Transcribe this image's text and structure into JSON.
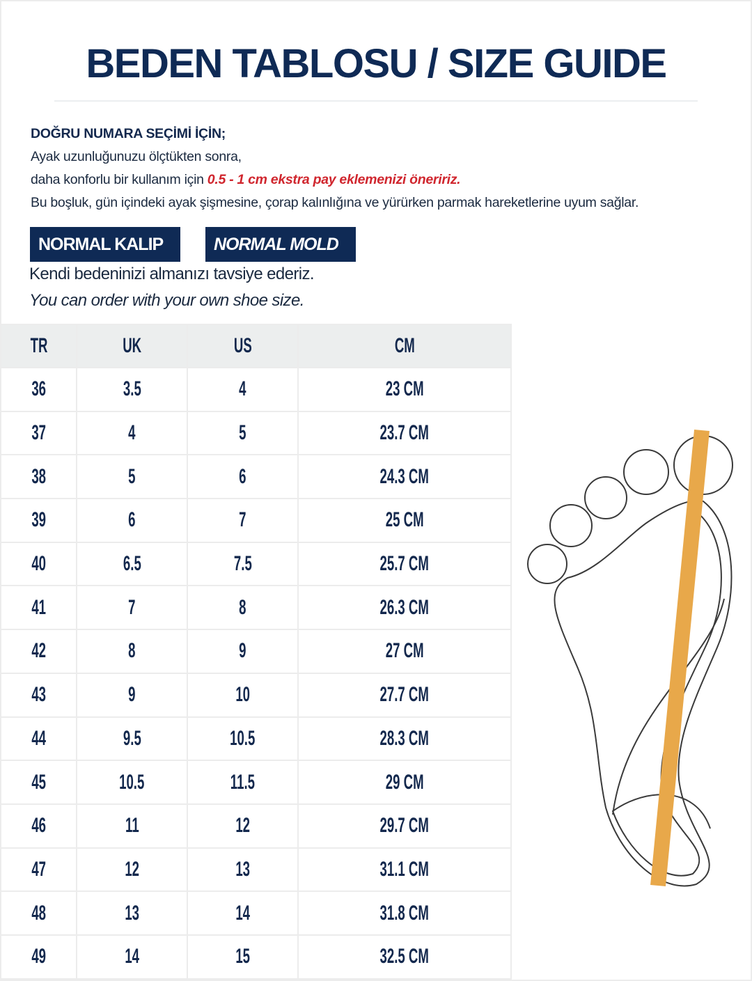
{
  "title": "BEDEN TABLOSU / SIZE GUIDE",
  "intro": {
    "heading": "DOĞRU NUMARA SEÇİMİ İÇİN;",
    "line1": "Ayak uzunluğunuzu ölçtükten sonra,",
    "line2_prefix": "daha konforlu bir kullanım için ",
    "line2_highlight": "0.5 - 1 cm ekstra pay eklemenizi öneririz.",
    "line3": "Bu boşluk, gün içindeki ayak şişmesine, çorap kalınlığına ve yürürken parmak hareketlerine uyum sağlar."
  },
  "badges": [
    "NORMAL KALIP",
    "NORMAL MOLD"
  ],
  "recommendation_tr": "Kendi bedeninizi almanızı tavsiye ederiz.",
  "recommendation_en": "You can order with your own shoe size.",
  "colors": {
    "navy": "#0f2a55",
    "highlight_red": "#d0262e",
    "ruler_orange": "#e8a84a",
    "header_bg": "#eceeee"
  },
  "table": {
    "headers": [
      "TR",
      "UK",
      "US",
      "CM"
    ],
    "rows": [
      [
        "36",
        "3.5",
        "4",
        "23 CM"
      ],
      [
        "37",
        "4",
        "5",
        "23.7 CM"
      ],
      [
        "38",
        "5",
        "6",
        "24.3 CM"
      ],
      [
        "39",
        "6",
        "7",
        "25 CM"
      ],
      [
        "40",
        "6.5",
        "7.5",
        "25.7 CM"
      ],
      [
        "41",
        "7",
        "8",
        "26.3 CM"
      ],
      [
        "42",
        "8",
        "9",
        "27 CM"
      ],
      [
        "43",
        "9",
        "10",
        "27.7 CM"
      ],
      [
        "44",
        "9.5",
        "10.5",
        "28.3 CM"
      ],
      [
        "45",
        "10.5",
        "11.5",
        "29 CM"
      ],
      [
        "46",
        "11",
        "12",
        "29.7 CM"
      ],
      [
        "47",
        "12",
        "13",
        "31.1 CM"
      ],
      [
        "48",
        "13",
        "14",
        "31.8 CM"
      ],
      [
        "49",
        "14",
        "15",
        "32.5 CM"
      ]
    ]
  },
  "illustration": "foot-measurement-icon"
}
